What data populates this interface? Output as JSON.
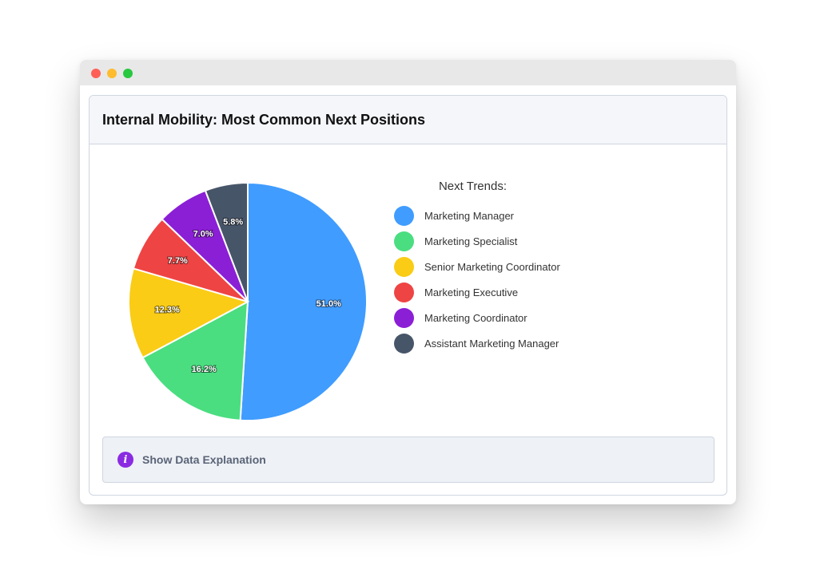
{
  "card": {
    "title": "Internal Mobility: Most Common Next Positions"
  },
  "legend": {
    "title": "Next Trends:"
  },
  "explanation": {
    "label": "Show Data Explanation",
    "icon": "info-icon",
    "icon_glyph": "i",
    "icon_color": "#8a2be2"
  },
  "window": {
    "controls": [
      "close",
      "minimize",
      "maximize"
    ],
    "control_colors": [
      "#ff5f57",
      "#febc2e",
      "#28c840"
    ]
  },
  "chart_data": {
    "type": "pie",
    "categories": [
      "Marketing Manager",
      "Marketing Specialist",
      "Senior Marketing Coordinator",
      "Marketing Executive",
      "Marketing Coordinator",
      "Assistant Marketing Manager"
    ],
    "values": [
      51.0,
      16.2,
      12.3,
      7.7,
      7.0,
      5.8
    ],
    "labels": [
      "51.0%",
      "16.2%",
      "12.3%",
      "7.7%",
      "7.0%",
      "5.8%"
    ],
    "colors": [
      "#409cff",
      "#4ade80",
      "#facc15",
      "#ef4444",
      "#8b1fd6",
      "#475569"
    ],
    "legend_title": "Next Trends:",
    "legend_placement": "right",
    "start_angle": "top",
    "direction": "clockwise"
  }
}
